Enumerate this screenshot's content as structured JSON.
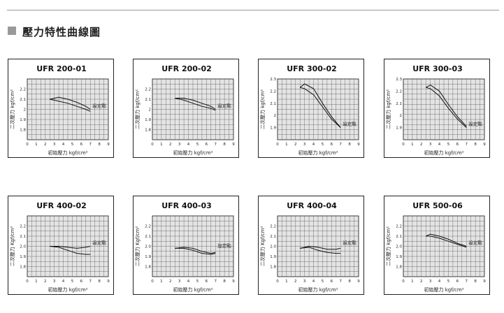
{
  "section": {
    "title": "壓力特性曲線圖"
  },
  "chart_data": [
    {
      "type": "line",
      "title": "UFR 200-01",
      "xlabel": "初始壓力 kgf/cm²",
      "ylabel": "二次壓力 kgf/cm²",
      "xlim": [
        0,
        9
      ],
      "ylim": [
        1.7,
        2.3
      ],
      "xticks": [
        "0",
        "1",
        "2",
        "3",
        "4",
        "5",
        "6",
        "7",
        "8",
        "9"
      ],
      "yticks": [
        "1.8",
        "1.9",
        "2",
        "2.1",
        "2.2"
      ],
      "annotation": {
        "text": "設定點",
        "x": 7,
        "y": 2.0
      },
      "series": [
        {
          "points": [
            [
              2.5,
              2.1
            ],
            [
              3.5,
              2.12
            ],
            [
              4.5,
              2.1
            ],
            [
              5.5,
              2.07
            ],
            [
              6.5,
              2.03
            ],
            [
              7,
              2.0
            ]
          ]
        },
        {
          "points": [
            [
              2.5,
              2.1
            ],
            [
              3.5,
              2.08
            ],
            [
              4.5,
              2.06
            ],
            [
              5.5,
              2.03
            ],
            [
              6.5,
              2.0
            ],
            [
              7,
              1.98
            ]
          ]
        }
      ]
    },
    {
      "type": "line",
      "title": "UFR 200-02",
      "xlabel": "初始壓力 kgf/cm²",
      "ylabel": "二次壓力 kgf/cm²",
      "xlim": [
        0,
        9
      ],
      "ylim": [
        1.7,
        2.3
      ],
      "xticks": [
        "0",
        "1",
        "2",
        "3",
        "4",
        "5",
        "6",
        "7",
        "8",
        "9"
      ],
      "yticks": [
        "1.8",
        "1.9",
        "2",
        "2.1",
        "2.2"
      ],
      "annotation": {
        "text": "設定點",
        "x": 7,
        "y": 2.0
      },
      "series": [
        {
          "points": [
            [
              2.5,
              2.11
            ],
            [
              3.5,
              2.11
            ],
            [
              4.5,
              2.09
            ],
            [
              5.5,
              2.06
            ],
            [
              6.5,
              2.03
            ],
            [
              7,
              2.0
            ]
          ]
        },
        {
          "points": [
            [
              2.5,
              2.11
            ],
            [
              3.5,
              2.09
            ],
            [
              4.5,
              2.06
            ],
            [
              5.5,
              2.03
            ],
            [
              6.5,
              2.01
            ],
            [
              7,
              1.99
            ]
          ]
        }
      ]
    },
    {
      "type": "line",
      "title": "UFR 300-02",
      "xlabel": "初始壓力 kgf/cm²",
      "ylabel": "二次壓力 kgf/cm²",
      "xlim": [
        0,
        9
      ],
      "ylim": [
        1.8,
        2.3
      ],
      "xticks": [
        "0",
        "1",
        "2",
        "3",
        "4",
        "5",
        "6",
        "7",
        "8",
        "9"
      ],
      "yticks": [
        "1.9",
        "2",
        "2.1",
        "2.2",
        "2.3"
      ],
      "annotation": {
        "text": "設定點",
        "x": 7,
        "y": 1.9
      },
      "series": [
        {
          "points": [
            [
              2.5,
              2.23
            ],
            [
              3,
              2.26
            ],
            [
              4,
              2.22
            ],
            [
              5,
              2.1
            ],
            [
              6,
              1.99
            ],
            [
              7,
              1.9
            ]
          ]
        },
        {
          "points": [
            [
              2.5,
              2.23
            ],
            [
              3,
              2.22
            ],
            [
              4,
              2.17
            ],
            [
              5,
              2.07
            ],
            [
              6,
              1.97
            ],
            [
              7,
              1.9
            ]
          ]
        }
      ]
    },
    {
      "type": "line",
      "title": "UFR 300-03",
      "xlabel": "初始壓力 kgf/cm²",
      "ylabel": "二次壓力 kgf/cm²",
      "xlim": [
        0,
        9
      ],
      "ylim": [
        1.8,
        2.3
      ],
      "xticks": [
        "0",
        "1",
        "2",
        "3",
        "4",
        "5",
        "6",
        "7",
        "8",
        "9"
      ],
      "yticks": [
        "1.9",
        "2",
        "2.1",
        "2.2",
        "2.3"
      ],
      "annotation": {
        "text": "設定點",
        "x": 7,
        "y": 1.9
      },
      "series": [
        {
          "points": [
            [
              2.5,
              2.23
            ],
            [
              3,
              2.25
            ],
            [
              4,
              2.2
            ],
            [
              5,
              2.09
            ],
            [
              6,
              1.99
            ],
            [
              7,
              1.91
            ]
          ]
        },
        {
          "points": [
            [
              2.5,
              2.23
            ],
            [
              3,
              2.22
            ],
            [
              4,
              2.16
            ],
            [
              5,
              2.06
            ],
            [
              6,
              1.97
            ],
            [
              7,
              1.9
            ]
          ]
        }
      ]
    },
    {
      "type": "line",
      "title": "UFR 400-02",
      "xlabel": "初始壓力 kgf/cm²",
      "ylabel": "二次壓力 Kgf/cm²",
      "xlim": [
        0,
        9
      ],
      "ylim": [
        1.7,
        2.3
      ],
      "xticks": [
        "0",
        "1",
        "2",
        "3",
        "4",
        "5",
        "6",
        "7",
        "8",
        "9"
      ],
      "yticks": [
        "1.8",
        "1.9",
        "2.0",
        "2.1",
        "2.2"
      ],
      "annotation": {
        "text": "設定點",
        "x": 7,
        "y": 2.0
      },
      "series": [
        {
          "points": [
            [
              2.5,
              2.0
            ],
            [
              3.5,
              2.0
            ],
            [
              4.5,
              1.99
            ],
            [
              5.5,
              1.98
            ],
            [
              6.5,
              1.99
            ],
            [
              7,
              2.0
            ]
          ]
        },
        {
          "points": [
            [
              2.5,
              2.0
            ],
            [
              3.5,
              1.99
            ],
            [
              4.5,
              1.96
            ],
            [
              5.5,
              1.93
            ],
            [
              6.5,
              1.92
            ],
            [
              7,
              1.92
            ]
          ]
        }
      ]
    },
    {
      "type": "line",
      "title": "UFR 400-03",
      "xlabel": "初始壓力 kgf/cm²",
      "ylabel": "二次壓力 Kgf/cm²",
      "xlim": [
        0,
        9
      ],
      "ylim": [
        1.7,
        2.3
      ],
      "xticks": [
        "0",
        "1",
        "2",
        "3",
        "4",
        "5",
        "6",
        "7",
        "8",
        "9"
      ],
      "yticks": [
        "1.8",
        "1.9",
        "2.0",
        "2.1",
        "2.2"
      ],
      "annotation": {
        "text": "設定點",
        "x": 7,
        "y": 1.97
      },
      "series": [
        {
          "points": [
            [
              2.5,
              1.98
            ],
            [
              3.5,
              1.99
            ],
            [
              4.5,
              1.98
            ],
            [
              5.5,
              1.95
            ],
            [
              6.5,
              1.93
            ],
            [
              7,
              1.94
            ]
          ]
        },
        {
          "points": [
            [
              2.5,
              1.98
            ],
            [
              3.5,
              1.98
            ],
            [
              4.5,
              1.96
            ],
            [
              5.5,
              1.93
            ],
            [
              6.5,
              1.92
            ],
            [
              7,
              1.93
            ]
          ]
        }
      ]
    },
    {
      "type": "line",
      "title": "UFR 400-04",
      "xlabel": "初始壓力 kgf/cm²",
      "ylabel": "二次壓力 Kgf/cm²",
      "xlim": [
        0,
        9
      ],
      "ylim": [
        1.7,
        2.3
      ],
      "xticks": [
        "0",
        "1",
        "2",
        "3",
        "4",
        "5",
        "6",
        "7",
        "8",
        "9"
      ],
      "yticks": [
        "1.8",
        "1.9",
        "2.0",
        "2.1",
        "2.2"
      ],
      "annotation": {
        "text": "設定點",
        "x": 7,
        "y": 2.0
      },
      "series": [
        {
          "points": [
            [
              2.5,
              1.98
            ],
            [
              3.5,
              2.0
            ],
            [
              4.5,
              1.99
            ],
            [
              5.5,
              1.97
            ],
            [
              6.5,
              1.97
            ],
            [
              7,
              1.98
            ]
          ]
        },
        {
          "points": [
            [
              2.5,
              1.98
            ],
            [
              3.5,
              1.99
            ],
            [
              4.5,
              1.96
            ],
            [
              5.5,
              1.94
            ],
            [
              6.5,
              1.93
            ],
            [
              7,
              1.93
            ]
          ]
        }
      ]
    },
    {
      "type": "line",
      "title": "UFR 500-06",
      "xlabel": "初始壓力 kgf/cm²",
      "ylabel": "二次壓力 kgf/cm²",
      "xlim": [
        0,
        9
      ],
      "ylim": [
        1.7,
        2.3
      ],
      "xticks": [
        "0",
        "1",
        "2",
        "3",
        "4",
        "5",
        "6",
        "7",
        "8",
        "9"
      ],
      "yticks": [
        "1.8",
        "1.9",
        "2.0",
        "2.1",
        "2.2"
      ],
      "annotation": {
        "text": "設定點",
        "x": 7,
        "y": 2.0
      },
      "series": [
        {
          "points": [
            [
              2.5,
              2.1
            ],
            [
              3,
              2.12
            ],
            [
              4,
              2.1
            ],
            [
              5,
              2.07
            ],
            [
              6,
              2.03
            ],
            [
              7,
              2.0
            ]
          ]
        },
        {
          "points": [
            [
              2.5,
              2.1
            ],
            [
              3,
              2.1
            ],
            [
              4,
              2.08
            ],
            [
              5,
              2.05
            ],
            [
              6,
              2.02
            ],
            [
              7,
              1.99
            ]
          ]
        }
      ]
    }
  ]
}
